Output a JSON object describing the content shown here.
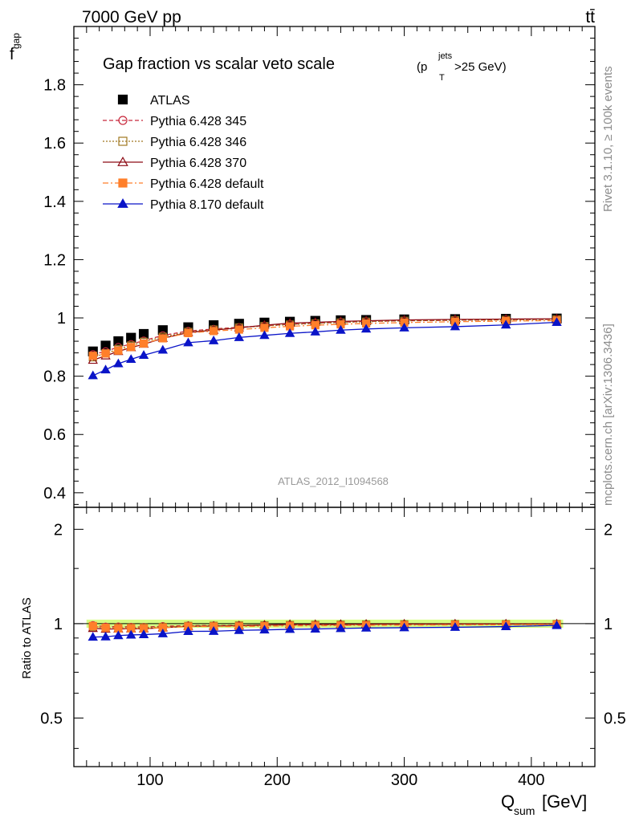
{
  "header": {
    "energy_label": "7000 GeV pp",
    "process_label": "tt̄"
  },
  "side_labels": {
    "rivet": "Rivet 3.1.10, ≥ 100k events",
    "mcplots": "mcplots.cern.ch [arXiv:1306.3436]"
  },
  "chart_data": {
    "type": "line",
    "title": "Gap fraction vs scalar veto scale",
    "title_cut": {
      "open": "(p",
      "sup": "jets",
      "sub": "T",
      "close": ">25 GeV)"
    },
    "analysis_tag": "ATLAS_2012_I1094568",
    "xlabel": {
      "main": "Q",
      "sub": "sum",
      "unit": " [GeV]"
    },
    "ylabel": {
      "main": "f",
      "sub": "gap"
    },
    "ratio_ylabel": "Ratio to ATLAS",
    "xlim": [
      40,
      450
    ],
    "ylim": [
      0.35,
      2.0
    ],
    "ratio_ylim": [
      0.35,
      2.35
    ],
    "ratio_scale": "log",
    "x_ticks": [
      100,
      200,
      300,
      400
    ],
    "y_ticks": [
      0.4,
      0.6,
      0.8,
      1,
      1.2,
      1.4,
      1.6,
      1.8
    ],
    "y_tick_labels": [
      "0.4",
      "0.6",
      "0.8",
      "1",
      "1.2",
      "1.4",
      "1.6",
      "1.8"
    ],
    "ratio_ticks": [
      0.5,
      1,
      2
    ],
    "ratio_tick_labels": [
      "0.5",
      "1",
      "2"
    ],
    "x": [
      55,
      65,
      75,
      85,
      95,
      110,
      130,
      150,
      170,
      190,
      210,
      230,
      250,
      270,
      300,
      340,
      380,
      420
    ],
    "legend_position": "top-left",
    "series": [
      {
        "name": "ATLAS",
        "color": "#000000",
        "marker": "filled-square",
        "dash": "none",
        "line": false,
        "values": [
          0.885,
          0.905,
          0.92,
          0.932,
          0.945,
          0.958,
          0.968,
          0.975,
          0.98,
          0.984,
          0.987,
          0.99,
          0.992,
          0.993,
          0.995,
          0.996,
          0.997,
          0.998
        ]
      },
      {
        "name": "Pythia 6.428 345",
        "color": "#c8283c",
        "marker": "open-circle",
        "dash": "5,3",
        "line": true,
        "values": [
          0.875,
          0.885,
          0.9,
          0.91,
          0.922,
          0.94,
          0.955,
          0.962,
          0.968,
          0.973,
          0.978,
          0.982,
          0.985,
          0.988,
          0.99,
          0.992,
          0.994,
          0.995
        ]
      },
      {
        "name": "Pythia 6.428 346",
        "color": "#a07820",
        "marker": "open-square",
        "dash": "2,2",
        "line": true,
        "values": [
          0.865,
          0.878,
          0.893,
          0.905,
          0.918,
          0.935,
          0.952,
          0.96,
          0.967,
          0.972,
          0.977,
          0.981,
          0.984,
          0.987,
          0.99,
          0.992,
          0.993,
          0.995
        ]
      },
      {
        "name": "Pythia 6.428 370",
        "color": "#8c0a14",
        "marker": "open-triangle",
        "dash": "none",
        "line": true,
        "values": [
          0.855,
          0.87,
          0.885,
          0.898,
          0.91,
          0.93,
          0.95,
          0.958,
          0.966,
          0.975,
          0.982,
          0.985,
          0.988,
          0.99,
          0.993,
          0.995,
          0.996,
          0.997
        ]
      },
      {
        "name": "Pythia 6.428 default",
        "color": "#ff7f2a",
        "marker": "filled-square",
        "dash": "7,3,2,3",
        "line": true,
        "values": [
          0.87,
          0.878,
          0.888,
          0.9,
          0.912,
          0.93,
          0.948,
          0.955,
          0.96,
          0.966,
          0.971,
          0.975,
          0.978,
          0.981,
          0.984,
          0.987,
          0.989,
          0.991
        ]
      },
      {
        "name": "Pythia 8.170 default",
        "color": "#0a14c8",
        "marker": "filled-triangle",
        "dash": "none",
        "line": true,
        "values": [
          0.802,
          0.822,
          0.843,
          0.858,
          0.872,
          0.89,
          0.915,
          0.922,
          0.933,
          0.94,
          0.947,
          0.952,
          0.958,
          0.962,
          0.966,
          0.97,
          0.976,
          0.985
        ]
      }
    ],
    "ratio_band": {
      "color": "#ccff66",
      "half_width": 0.03
    }
  }
}
